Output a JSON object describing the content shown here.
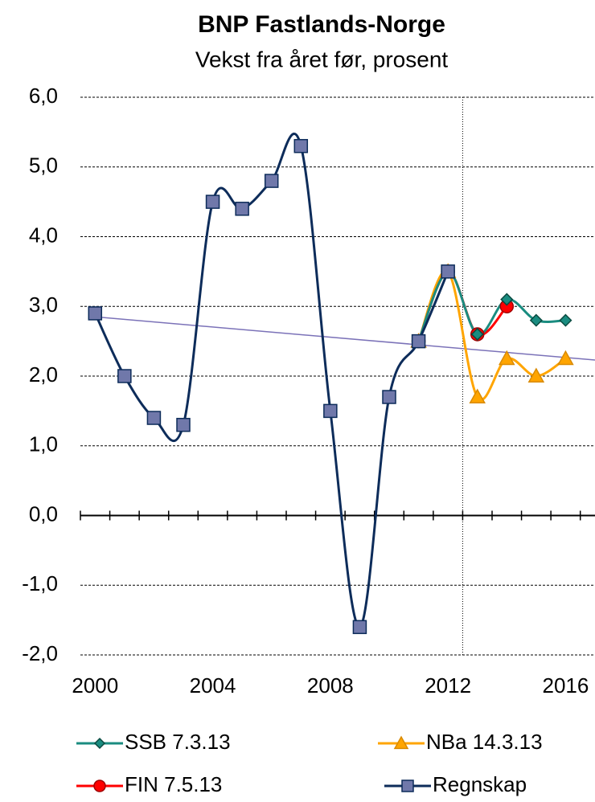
{
  "chart_data": {
    "type": "line",
    "title": "BNP Fastlands-Norge",
    "subtitle": "Vekst fra året før, prosent",
    "xlim": [
      1999.5,
      2017
    ],
    "xticks": [
      2000,
      2004,
      2008,
      2012,
      2016
    ],
    "ylim": [
      -2,
      6
    ],
    "yticks": [
      {
        "value": -2,
        "label": "-2,0"
      },
      {
        "value": -1,
        "label": "-1,0"
      },
      {
        "value": 0,
        "label": "0,0"
      },
      {
        "value": 1,
        "label": "1,0"
      },
      {
        "value": 2,
        "label": "2,0"
      },
      {
        "value": 3,
        "label": "3,0"
      },
      {
        "value": 4,
        "label": "4,0"
      },
      {
        "value": 5,
        "label": "5,0"
      },
      {
        "value": 6,
        "label": "6,0"
      }
    ],
    "grid": true,
    "vline": 2012.5,
    "trendline": {
      "x": [
        2000,
        2017
      ],
      "values": [
        2.85,
        2.23
      ],
      "color": "#7b72b8"
    },
    "series": [
      {
        "name": "NBa 14.3.13",
        "color": "#ffa500",
        "marker": "triangle",
        "x": [
          2011,
          2012,
          2013,
          2014,
          2015,
          2016
        ],
        "values": [
          2.5,
          3.5,
          1.7,
          2.25,
          2.0,
          2.25
        ]
      },
      {
        "name": "FIN 7.5.13",
        "color": "#ff0000",
        "marker": "circle",
        "x": [
          2011,
          2012,
          2013,
          2014
        ],
        "values": [
          2.5,
          3.5,
          2.6,
          3.0
        ]
      },
      {
        "name": "SSB 7.3.13",
        "color": "#1a8c80",
        "marker": "diamond",
        "x": [
          2011,
          2012,
          2013,
          2014,
          2015,
          2016
        ],
        "values": [
          2.5,
          3.5,
          2.6,
          3.1,
          2.8,
          2.8
        ]
      },
      {
        "name": "Regnskap",
        "color": "#0d2c5a",
        "marker": "square",
        "x": [
          2000,
          2001,
          2002,
          2003,
          2004,
          2005,
          2006,
          2007,
          2008,
          2009,
          2010,
          2011,
          2012
        ],
        "values": [
          2.9,
          2.0,
          1.4,
          1.3,
          4.5,
          4.4,
          4.8,
          5.3,
          1.5,
          -1.6,
          1.7,
          2.5,
          3.5
        ]
      }
    ]
  }
}
